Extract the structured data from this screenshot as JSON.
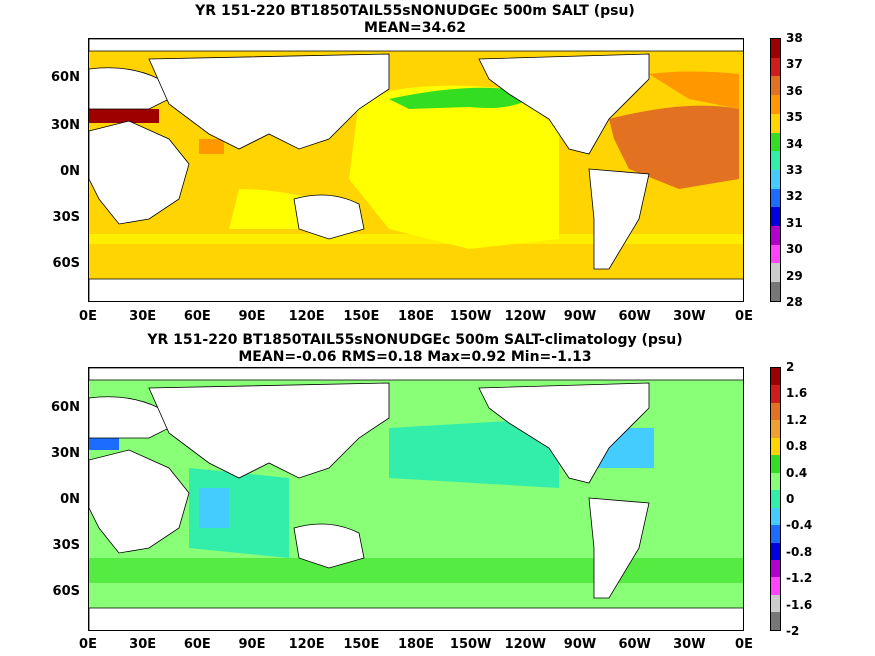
{
  "top_panel": {
    "title": "YR 151-220 BT1850TAIL55sNONUDGEc 500m SALT (psu)",
    "subtitle": "MEAN=34.62",
    "colorbar": {
      "labels": [
        "38",
        "37",
        "36",
        "35",
        "34",
        "33",
        "32",
        "31",
        "30",
        "29",
        "28"
      ],
      "colors": [
        "#9e0000",
        "#d01c1c",
        "#e27222",
        "#ff9800",
        "#ffd400",
        "#33dd22",
        "#33eeaa",
        "#44ccff",
        "#1c6cff",
        "#0000dd",
        "#b000cc",
        "#ff44ff",
        "#cccccc",
        "#777777"
      ]
    }
  },
  "bottom_panel": {
    "title": "YR 151-220 BT1850TAIL55sNONUDGEc 500m SALT-climatology (psu)",
    "subtitle": "MEAN=-0.06   RMS=0.18   Max=0.92   Min=-1.13",
    "colorbar": {
      "labels": [
        "2",
        "1.6",
        "1.2",
        "0.8",
        "0.4",
        "0",
        "-0.4",
        "-0.8",
        "-1.2",
        "-1.6",
        "-2"
      ],
      "colors": [
        "#9e0000",
        "#d01c1c",
        "#e27222",
        "#f0a030",
        "#ffd400",
        "#33dd22",
        "#88ff77",
        "#33eeaa",
        "#44ccff",
        "#1c6cff",
        "#0000dd",
        "#b000cc",
        "#ff44ff",
        "#cccccc",
        "#777777"
      ]
    }
  },
  "axes": {
    "lat_labels": [
      "60N",
      "30N",
      "0N",
      "30S",
      "60S"
    ],
    "lon_labels": [
      "0E",
      "30E",
      "60E",
      "90E",
      "120E",
      "150E",
      "180E",
      "150W",
      "120W",
      "90W",
      "60W",
      "30W",
      "0E"
    ]
  }
}
